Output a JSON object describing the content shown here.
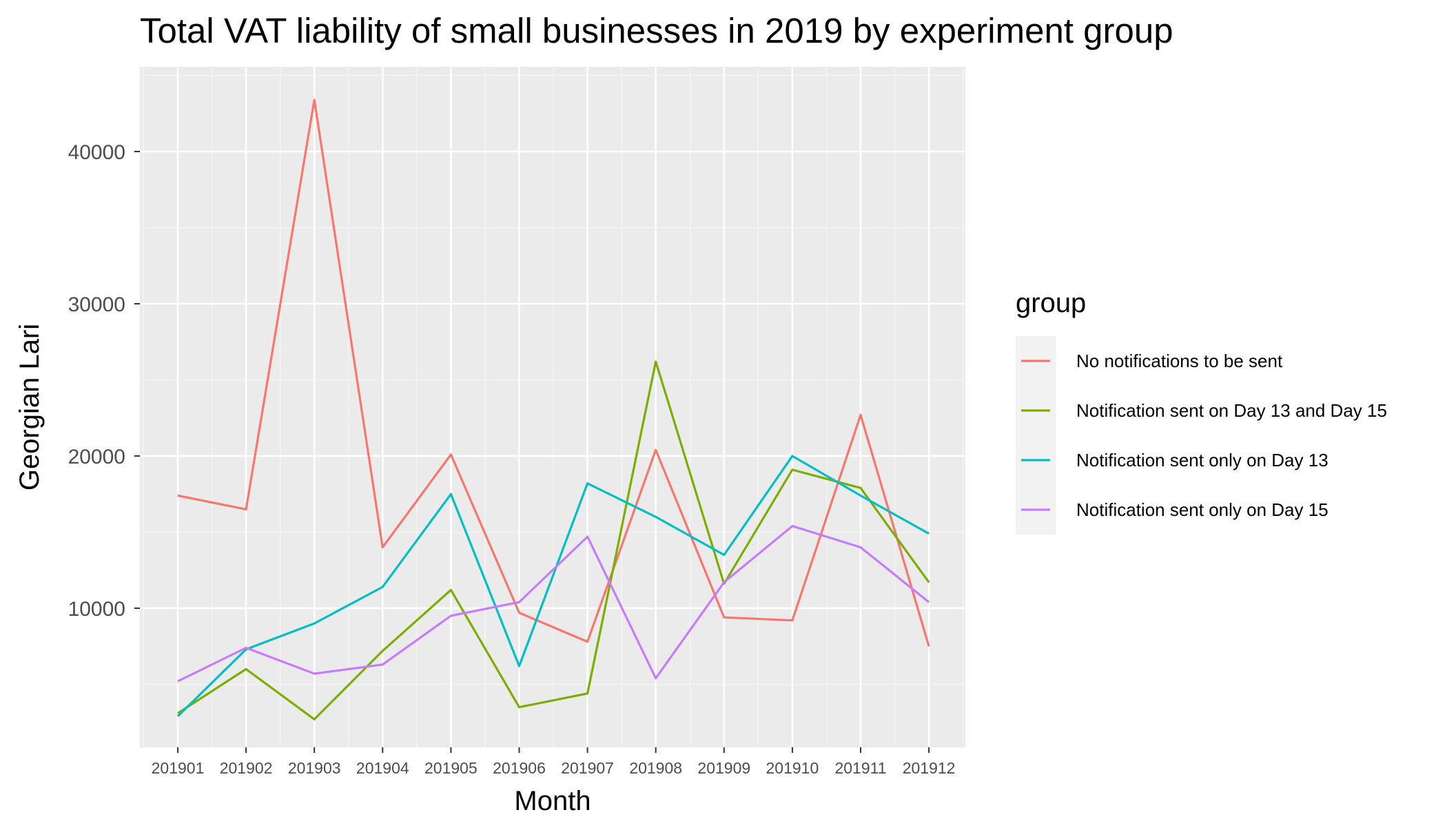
{
  "chart_data": {
    "type": "line",
    "title": "Total VAT liability of small businesses in 2019 by experiment group",
    "xlabel": "Month",
    "ylabel": "Georgian Lari",
    "categories": [
      "201901",
      "201902",
      "201903",
      "201904",
      "201905",
      "201906",
      "201907",
      "201908",
      "201909",
      "201910",
      "201911",
      "201912"
    ],
    "y_ticks": [
      "10000",
      "20000",
      "30000",
      "40000"
    ],
    "ylim": [
      1500,
      45000
    ],
    "grid": true,
    "legend": {
      "title": "group",
      "position": "right"
    },
    "series": [
      {
        "name": "No notifications to be sent",
        "color": "#F8766D",
        "values": [
          17400,
          16500,
          43400,
          14000,
          20100,
          9700,
          7800,
          20400,
          9400,
          9200,
          22700,
          7500
        ]
      },
      {
        "name": "Notification sent on Day 13 and Day 15",
        "color": "#7CAE00",
        "values": [
          3100,
          6000,
          2700,
          7200,
          11200,
          3500,
          4400,
          26200,
          11600,
          19100,
          17900,
          11700
        ]
      },
      {
        "name": "Notification sent only on Day 13",
        "color": "#00BFC4",
        "values": [
          2900,
          7300,
          9000,
          11400,
          17500,
          6200,
          18200,
          16000,
          13500,
          20000,
          17400,
          14900
        ]
      },
      {
        "name": "Notification sent only on Day 15",
        "color": "#C77CFF",
        "values": [
          5200,
          7400,
          5700,
          6300,
          9500,
          10400,
          14700,
          5400,
          11700,
          15400,
          14000,
          10400
        ]
      }
    ]
  }
}
